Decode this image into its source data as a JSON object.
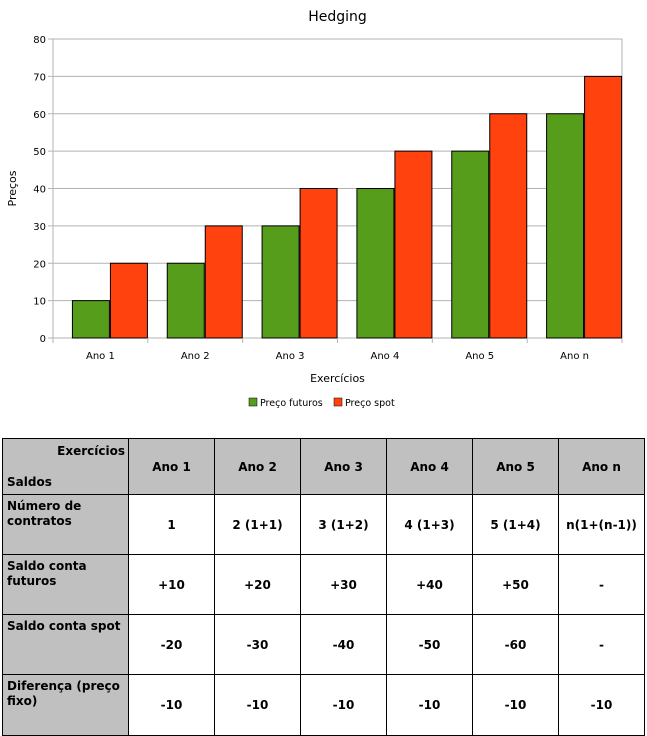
{
  "chart_data": {
    "type": "bar",
    "title": "Hedging",
    "xlabel": "Exercícios",
    "ylabel": "Preços",
    "categories": [
      "Ano 1",
      "Ano 2",
      "Ano 3",
      "Ano 4",
      "Ano 5",
      "Ano n"
    ],
    "ylim": [
      0,
      80
    ],
    "yticks": [
      0,
      10,
      20,
      30,
      40,
      50,
      60,
      70,
      80
    ],
    "grid": true,
    "legend_position": "bottom",
    "series": [
      {
        "name": "Preço futuros",
        "color": "#579d1c",
        "values": [
          10,
          20,
          30,
          40,
          50,
          60
        ]
      },
      {
        "name": "Preço spot",
        "color": "#ff420e",
        "values": [
          20,
          30,
          40,
          50,
          60,
          70
        ]
      }
    ]
  },
  "table": {
    "corner_top": "Exercícios",
    "corner_bottom": "Saldos",
    "columns": [
      "Ano 1",
      "Ano 2",
      "Ano 3",
      "Ano 4",
      "Ano 5",
      "Ano n"
    ],
    "rows": [
      {
        "label": "Número de contratos",
        "cells": [
          "1",
          "2 (1+1)",
          "3 (1+2)",
          "4 (1+3)",
          "5 (1+4)",
          "n(1+(n-1))"
        ]
      },
      {
        "label": "Saldo conta futuros",
        "cells": [
          "+10",
          "+20",
          "+30",
          "+40",
          "+50",
          "-"
        ]
      },
      {
        "label": "Saldo conta spot",
        "cells": [
          "-20",
          "-30",
          "-40",
          "-50",
          "-60",
          "-"
        ]
      },
      {
        "label": "Diferença (preço fixo)",
        "cells": [
          "-10",
          "-10",
          "-10",
          "-10",
          "-10",
          "-10"
        ]
      }
    ]
  }
}
